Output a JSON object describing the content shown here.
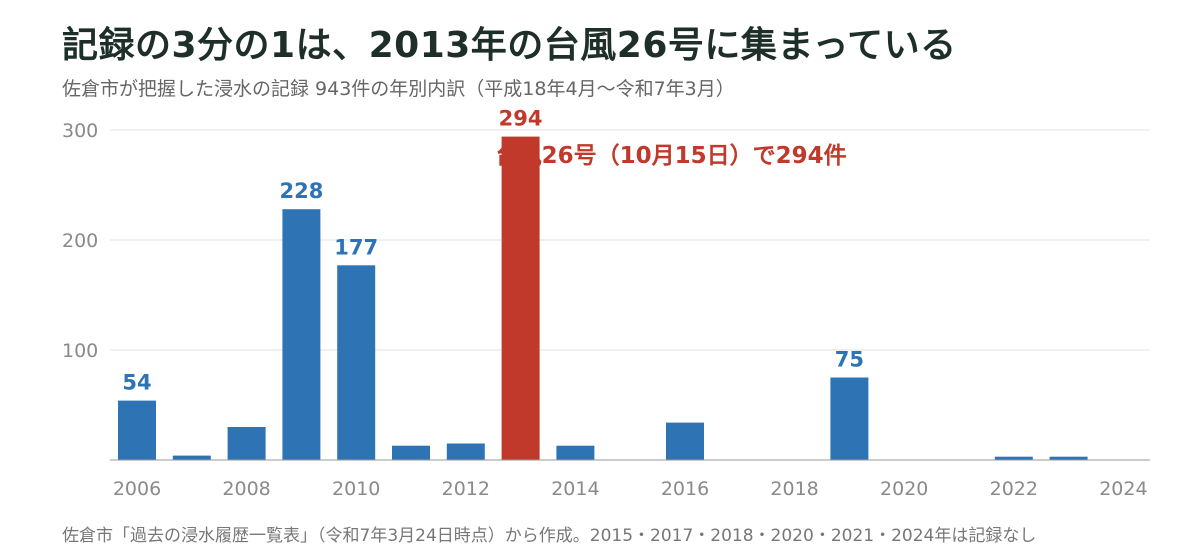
{
  "header": {
    "title": "記録の3分の1は、2013年の台風26号に集まっている",
    "subtitle": "佐倉市が把握した浸水の記録 943件の年別内訳（平成18年4月〜令和7年3月）"
  },
  "footer": {
    "note": "佐倉市「過去の浸水履歴一覧表」（令和7年3月24日時点）から作成。2015・2017・2018・2020・2021・2024年は記録なし"
  },
  "colors": {
    "bar": "#2e74b5",
    "highlight": "#c0392b",
    "grid": "#e2e2e2",
    "axis_label": "#8a8a8a"
  },
  "chart_data": {
    "type": "bar",
    "categories": [
      "2006",
      "2007",
      "2008",
      "2009",
      "2010",
      "2011",
      "2012",
      "2013",
      "2014",
      "2015",
      "2016",
      "2017",
      "2018",
      "2019",
      "2020",
      "2021",
      "2022",
      "2023",
      "2024"
    ],
    "values": [
      54,
      4,
      30,
      228,
      177,
      13,
      15,
      294,
      13,
      0,
      34,
      0,
      0,
      75,
      0,
      0,
      3,
      3,
      0
    ],
    "highlight_category": "2013",
    "value_labels": {
      "2006": "54",
      "2009": "228",
      "2010": "177",
      "2013": "294",
      "2019": "75"
    },
    "x_tick_labels": [
      "2006",
      "2008",
      "2010",
      "2012",
      "2014",
      "2016",
      "2018",
      "2020",
      "2022",
      "2024"
    ],
    "y_ticks": [
      100,
      200,
      300
    ],
    "ylim": [
      0,
      300
    ],
    "grid": true,
    "annotation": {
      "category": "2013",
      "text": "台風26号（10月15日）で294件"
    }
  }
}
